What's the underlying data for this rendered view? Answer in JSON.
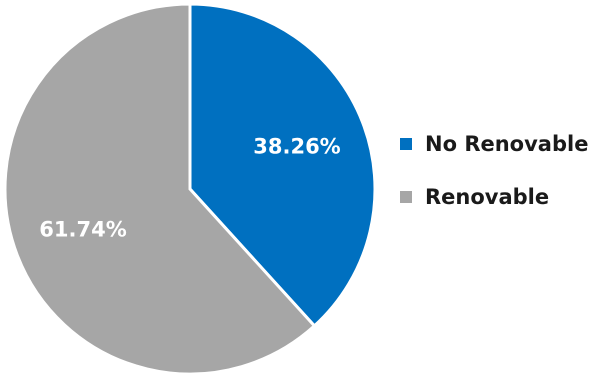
{
  "chart_data": {
    "type": "pie",
    "title": "",
    "legend_position": "right",
    "slices": [
      {
        "name": "No Renovable",
        "value": 38.26,
        "label": "38.26%",
        "color": "#0070c0"
      },
      {
        "name": "Renovable",
        "value": 61.74,
        "label": "61.74%",
        "color": "#a6a6a6"
      }
    ]
  }
}
